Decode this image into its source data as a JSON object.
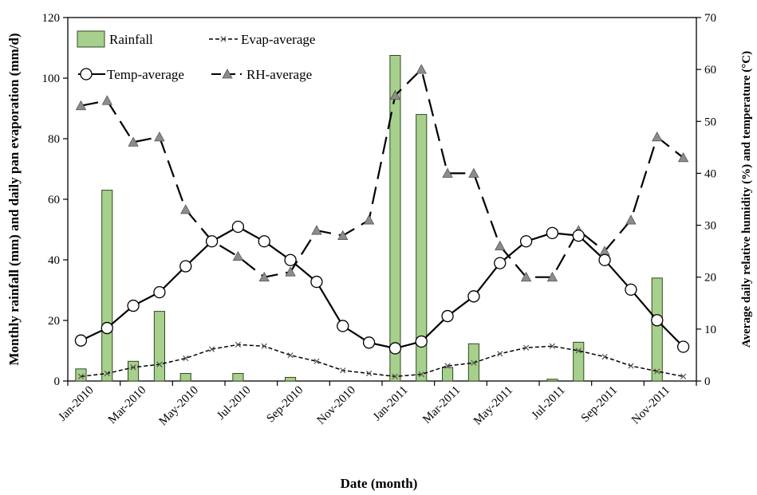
{
  "chart_data": {
    "type": "bar+line",
    "xlabel": "Date (month)",
    "ylabel_left": "Monthly rainfall (mm) and daily pan evaporation (mm/d)",
    "ylabel_right": "Average daily relative humidity (%) and temperature (°C)",
    "ylim_left": [
      0,
      120
    ],
    "yticks_left": [
      0,
      20,
      40,
      60,
      80,
      100,
      120
    ],
    "ylim_right": [
      0,
      70
    ],
    "yticks_right": [
      0,
      10,
      20,
      30,
      40,
      50,
      60,
      70
    ],
    "grid": false,
    "legend_position": "top-left",
    "months": [
      "Jan-2010",
      "Feb-2010",
      "Mar-2010",
      "Apr-2010",
      "May-2010",
      "Jun-2010",
      "Jul-2010",
      "Aug-2010",
      "Sep-2010",
      "Oct-2010",
      "Nov-2010",
      "Dec-2010",
      "Jan-2011",
      "Feb-2011",
      "Mar-2011",
      "Apr-2011",
      "May-2011",
      "Jun-2011",
      "Jul-2011",
      "Aug-2011",
      "Sep-2011",
      "Oct-2011",
      "Nov-2011",
      "Dec-2011"
    ],
    "x_tick_labels": [
      "Jan-2010",
      "Mar-2010",
      "May-2010",
      "Jul-2010",
      "Sep-2010",
      "Nov-2010",
      "Jan-2011",
      "Mar-2011",
      "May-2011",
      "Jul-2011",
      "Sep-2011",
      "Nov-2011"
    ],
    "series": [
      {
        "name": "Rainfall",
        "type": "bar",
        "axis": "left",
        "color": "#a8d08d",
        "edge": "#2e4a20",
        "values": [
          4,
          63,
          6.5,
          23,
          2.5,
          0,
          2.5,
          0,
          1.2,
          0,
          0,
          0,
          107.5,
          88,
          4.5,
          12.3,
          0,
          0,
          0.6,
          12.8,
          0,
          0,
          34,
          0
        ]
      },
      {
        "name": "Evap-average",
        "type": "line",
        "axis": "left",
        "style": "short-dash",
        "marker": "x",
        "values": [
          1.5,
          2.5,
          4.5,
          5.5,
          7.5,
          10.5,
          12,
          11.5,
          8.5,
          6.5,
          3.5,
          2.5,
          1.5,
          2.2,
          5,
          6,
          9,
          11,
          11.5,
          10,
          8,
          5,
          3.2,
          1.5
        ]
      },
      {
        "name": "Temp-average",
        "type": "line",
        "axis": "right",
        "style": "solid",
        "marker": "circle",
        "values": [
          7.8,
          10.2,
          14.5,
          17.1,
          22.1,
          26.9,
          29.7,
          26.9,
          23.3,
          19.1,
          10.6,
          7.4,
          6.3,
          7.6,
          12.5,
          16.3,
          22.7,
          26.9,
          28.5,
          28,
          23.3,
          17.6,
          11.7,
          6.6
        ]
      },
      {
        "name": "RH-average",
        "type": "line",
        "axis": "right",
        "style": "long-dash",
        "marker": "triangle",
        "values": [
          53,
          54,
          46,
          47,
          33,
          27,
          24,
          20,
          21,
          29,
          28,
          31,
          55,
          60,
          40,
          40,
          26,
          20,
          20,
          29,
          25,
          31,
          47,
          43
        ]
      }
    ]
  }
}
